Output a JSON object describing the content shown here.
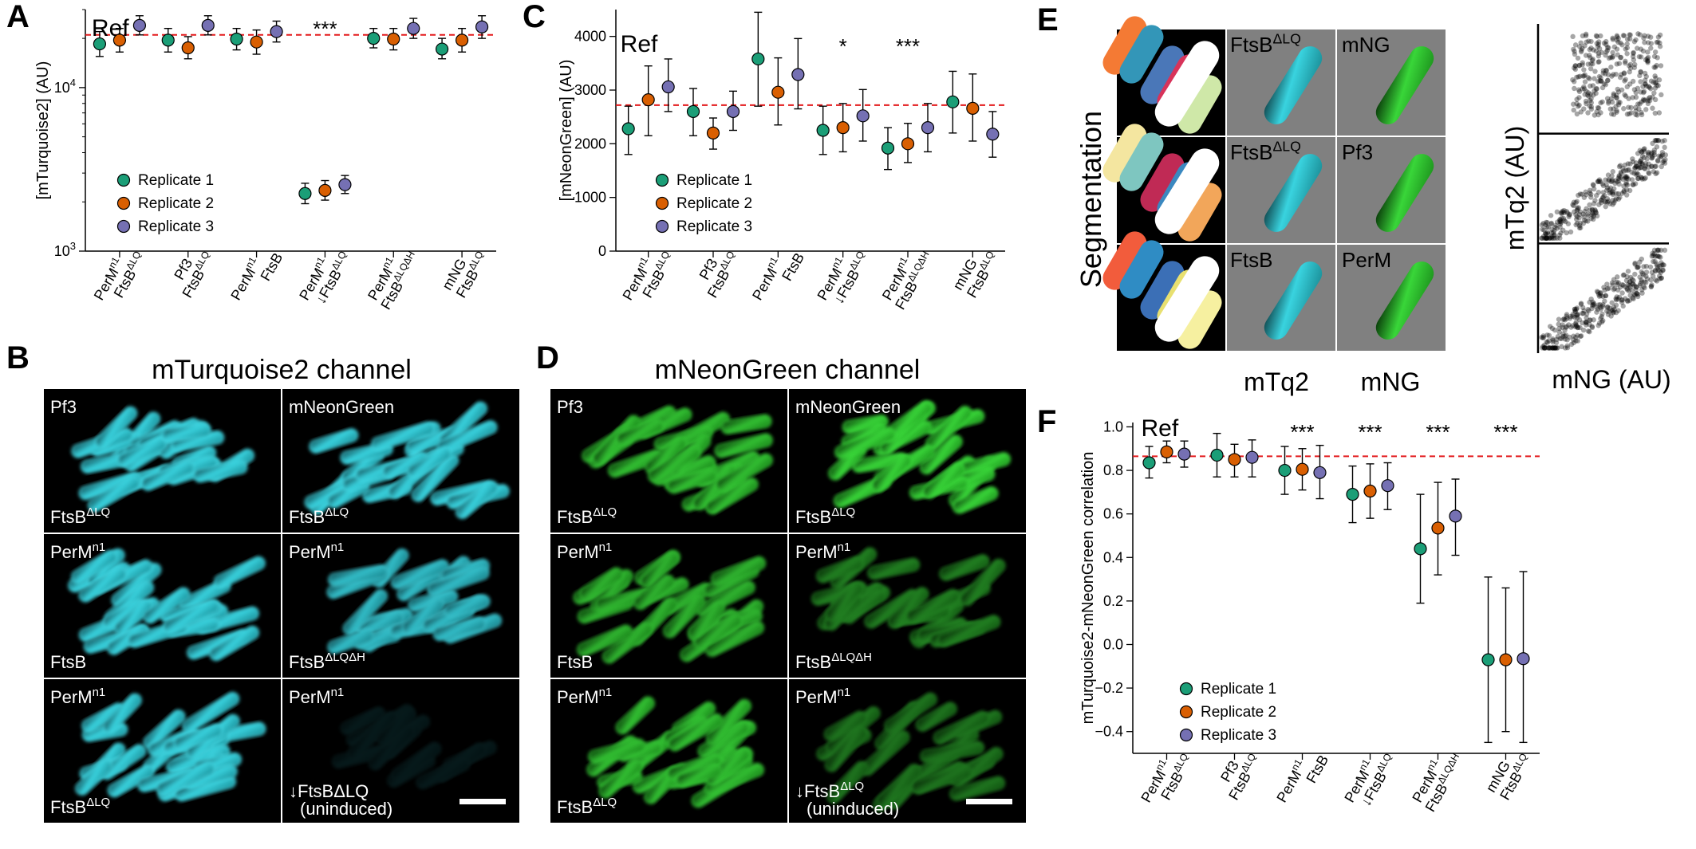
{
  "panel_letters": {
    "A": "A",
    "B": "B",
    "C": "C",
    "D": "D",
    "E": "E",
    "F": "F"
  },
  "colors": {
    "replicate_1": "#1b9e77",
    "replicate_2": "#d95f02",
    "replicate_3": "#7570b3",
    "reference_line": "#e31a1c",
    "cyan_channel": "#35c8d4",
    "green_channel": "#2fc62f"
  },
  "chart_data": [
    {
      "panel": "A",
      "type": "scatter",
      "ylabel": "[mTurquoise2] (AU)",
      "yscale": "log",
      "ylim": [
        1000,
        30000
      ],
      "ytick_labels": [
        "10^3",
        "10^4"
      ],
      "ref_label": "Ref",
      "ref_value": 21000,
      "significance": [
        {
          "group": 3,
          "text": "***"
        }
      ],
      "categories": [
        {
          "line1": "PerM^n1",
          "line2": "FtsB^ΔLQ"
        },
        {
          "line1": "Pf3",
          "line2": "FtsB^ΔLQ"
        },
        {
          "line1": "PerM^n1",
          "line2": "FtsB"
        },
        {
          "line1": "PerM^n1",
          "line2": "↓FtsB^ΔLQ"
        },
        {
          "line1": "PerM^n1",
          "line2": "FtsB^ΔLQΔH"
        },
        {
          "line1": "mNG",
          "line2": "FtsB^ΔLQ"
        }
      ],
      "series": [
        {
          "name": "Replicate 1",
          "values": [
            18500,
            19500,
            19800,
            2250,
            20000,
            17200
          ],
          "lower": [
            15500,
            16500,
            17000,
            1950,
            17500,
            15000
          ],
          "upper": [
            22000,
            23000,
            23000,
            2600,
            23000,
            20000
          ]
        },
        {
          "name": "Replicate 2",
          "values": [
            19500,
            17500,
            19000,
            2350,
            19800,
            19500
          ],
          "lower": [
            16500,
            15000,
            16000,
            2050,
            17000,
            16500
          ],
          "upper": [
            23000,
            20500,
            22500,
            2700,
            23000,
            23000
          ]
        },
        {
          "name": "Replicate 3",
          "values": [
            24000,
            24000,
            22000,
            2550,
            23000,
            23500
          ],
          "lower": [
            21000,
            21000,
            19000,
            2250,
            20000,
            20000
          ],
          "upper": [
            27500,
            27500,
            25500,
            2900,
            26500,
            27500
          ]
        }
      ],
      "legend": "lower-left"
    },
    {
      "panel": "C",
      "type": "scatter",
      "ylabel": "[mNeonGreen] (AU)",
      "ylim": [
        0,
        4500
      ],
      "yticks": [
        0,
        1000,
        2000,
        3000,
        4000
      ],
      "ref_label": "Ref",
      "ref_value": 2720,
      "significance": [
        {
          "group": 3,
          "text": "*"
        },
        {
          "group": 4,
          "text": "***"
        }
      ],
      "categories": [
        {
          "line1": "PerM^n1",
          "line2": "FtsB^ΔLQ"
        },
        {
          "line1": "Pf3",
          "line2": "FtsB^ΔLQ"
        },
        {
          "line1": "PerM^n1",
          "line2": "FtsB"
        },
        {
          "line1": "PerM^n1",
          "line2": "↓FtsB^ΔLQ"
        },
        {
          "line1": "PerM^n1",
          "line2": "FtsB^ΔLQΔH"
        },
        {
          "line1": "mNG",
          "line2": "FtsB^ΔLQ"
        }
      ],
      "series": [
        {
          "name": "Replicate 1",
          "values": [
            2280,
            2600,
            3580,
            2250,
            1920,
            2780
          ],
          "lower": [
            1800,
            2150,
            2700,
            1800,
            1520,
            2200
          ],
          "upper": [
            2700,
            3030,
            4450,
            2700,
            2300,
            3350
          ]
        },
        {
          "name": "Replicate 2",
          "values": [
            2820,
            2200,
            2960,
            2300,
            2000,
            2660
          ],
          "lower": [
            2150,
            1900,
            2350,
            1850,
            1650,
            2050
          ],
          "upper": [
            3450,
            2480,
            3600,
            2750,
            2380,
            3300
          ]
        },
        {
          "name": "Replicate 3",
          "values": [
            3060,
            2600,
            3290,
            2520,
            2300,
            2180
          ],
          "lower": [
            2600,
            2250,
            2650,
            2050,
            1850,
            1750
          ],
          "upper": [
            3580,
            2980,
            3960,
            3010,
            2750,
            2600
          ]
        }
      ],
      "legend": "lower-left"
    },
    {
      "panel": "F",
      "type": "scatter",
      "ylabel": "mTurquoise2-mNeonGreen correlation",
      "ylim": [
        -0.5,
        1.02
      ],
      "yticks": [
        -0.4,
        -0.2,
        0.0,
        0.2,
        0.4,
        0.6,
        0.8,
        1.0
      ],
      "ytick_labels": [
        "−0.4",
        "−0.2",
        "0.0",
        "0.2",
        "0.4",
        "0.6",
        "0.8",
        "1.0"
      ],
      "ref_label": "Ref",
      "ref_value": 0.865,
      "significance": [
        {
          "group": 2,
          "text": "***"
        },
        {
          "group": 3,
          "text": "***"
        },
        {
          "group": 4,
          "text": "***"
        },
        {
          "group": 5,
          "text": "***"
        }
      ],
      "categories": [
        {
          "line1": "PerM^n1",
          "line2": "FtsB^ΔLQ"
        },
        {
          "line1": "Pf3",
          "line2": "FtsB^ΔLQ"
        },
        {
          "line1": "PerM^n1",
          "line2": "FtsB"
        },
        {
          "line1": "PerM^n1",
          "line2": "↓FtsB^ΔLQ"
        },
        {
          "line1": "PerM^n1",
          "line2": "FtsB^ΔLQΔH"
        },
        {
          "line1": "mNG",
          "line2": "FtsB^ΔLQ"
        }
      ],
      "series": [
        {
          "name": "Replicate 1",
          "values": [
            0.835,
            0.87,
            0.8,
            0.69,
            0.44,
            -0.07
          ],
          "lower": [
            0.765,
            0.77,
            0.69,
            0.56,
            0.19,
            -0.45
          ],
          "upper": [
            0.91,
            0.97,
            0.91,
            0.82,
            0.69,
            0.31
          ]
        },
        {
          "name": "Replicate 2",
          "values": [
            0.885,
            0.85,
            0.805,
            0.705,
            0.535,
            -0.07
          ],
          "lower": [
            0.835,
            0.77,
            0.71,
            0.58,
            0.32,
            -0.4
          ],
          "upper": [
            0.935,
            0.92,
            0.9,
            0.83,
            0.745,
            0.26
          ]
        },
        {
          "name": "Replicate 3",
          "values": [
            0.875,
            0.86,
            0.79,
            0.73,
            0.59,
            -0.065
          ],
          "lower": [
            0.815,
            0.77,
            0.67,
            0.62,
            0.41,
            -0.45
          ],
          "upper": [
            0.935,
            0.94,
            0.915,
            0.835,
            0.76,
            0.335
          ]
        }
      ],
      "legend": "lower-left"
    },
    {
      "panel": "E-scatter",
      "type": "scatter",
      "xlabel": "mNG (AU)",
      "ylabel": "mTq2 (AU)",
      "subplots": [
        "FtsB^ΔLQ / mNG",
        "FtsB^ΔLQ / Pf3",
        "FtsB / PerM"
      ],
      "note": "three stacked point clouds; top uncorrelated, middle and bottom positively correlated"
    }
  ],
  "panel_B": {
    "title": "mTurquoise2 channel",
    "cells": [
      {
        "top": "Pf3",
        "bottom": "FtsB^ΔLQ",
        "cells": 24,
        "bright": 1.0
      },
      {
        "top": "mNeonGreen",
        "bottom": "FtsB^ΔLQ",
        "cells": 22,
        "bright": 1.0
      },
      {
        "top": "PerM^n1",
        "bottom": "FtsB",
        "cells": 24,
        "bright": 1.0
      },
      {
        "top": "PerM^n1",
        "bottom": "FtsB^ΔLQΔH",
        "cells": 24,
        "bright": 0.9
      },
      {
        "top": "PerM^n1",
        "bottom": "FtsB^ΔLQ",
        "cells": 26,
        "bright": 1.0
      },
      {
        "top": "PerM^n1",
        "bottom": "↓FtsBΔLQ",
        "bottom2": "(uninduced)",
        "cells": 14,
        "bright": 0.12
      }
    ]
  },
  "panel_D": {
    "title": "mNeonGreen channel",
    "cells": [
      {
        "top": "Pf3",
        "bottom": "FtsB^ΔLQ",
        "cells": 24,
        "bright": 0.9
      },
      {
        "top": "mNeonGreen",
        "bottom": "FtsB^ΔLQ",
        "cells": 22,
        "bright": 1.0
      },
      {
        "top": "PerM^n1",
        "bottom": "FtsB",
        "cells": 24,
        "bright": 0.85
      },
      {
        "top": "PerM^n1",
        "bottom": "FtsB^ΔLQΔH",
        "cells": 24,
        "bright": 0.6
      },
      {
        "top": "PerM^n1",
        "bottom": "FtsB^ΔLQ",
        "cells": 26,
        "bright": 0.9
      },
      {
        "top": "PerM^n1",
        "bottom": "↓FtsB^ΔLQ",
        "bottom2": "(uninduced)",
        "cells": 22,
        "bright": 0.55
      }
    ]
  },
  "panel_E": {
    "side_label": "Segmentation",
    "mtq2_labels": [
      "FtsB^ΔLQ",
      "FtsB^ΔLQ",
      "FtsB"
    ],
    "mng_labels": [
      "mNG",
      "Pf3",
      "PerM"
    ],
    "col_labels": [
      "mTq2",
      "mNG"
    ]
  }
}
